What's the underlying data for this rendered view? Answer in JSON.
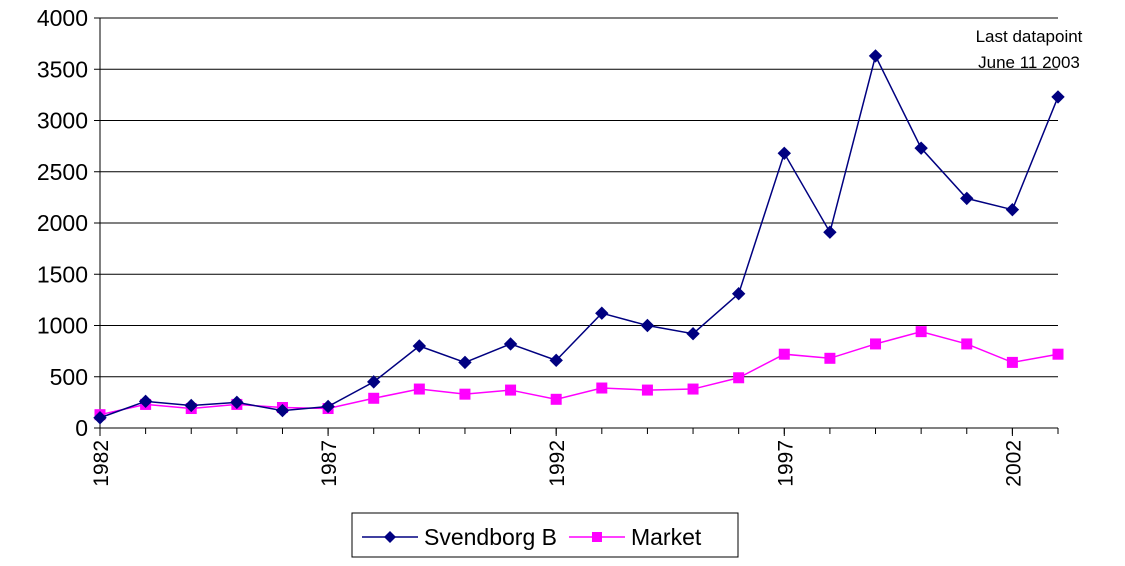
{
  "chart_data": {
    "type": "line",
    "annotations": [
      "Last datapoint",
      "June 11 2003"
    ],
    "x": [
      1982,
      1983,
      1984,
      1985,
      1986,
      1987,
      1988,
      1989,
      1990,
      1991,
      1992,
      1993,
      1994,
      1995,
      1996,
      1997,
      1998,
      1999,
      2000,
      2001,
      2002,
      2003
    ],
    "series": [
      {
        "name": "Svendborg B",
        "color": "#000080",
        "marker": "diamond",
        "values": [
          100,
          260,
          220,
          250,
          170,
          210,
          450,
          800,
          640,
          820,
          660,
          1120,
          1000,
          920,
          1310,
          2680,
          1910,
          3630,
          2730,
          2240,
          2130,
          3230
        ]
      },
      {
        "name": "Market",
        "color": "#ff00ff",
        "marker": "square",
        "values": [
          130,
          230,
          190,
          230,
          200,
          190,
          290,
          380,
          330,
          370,
          280,
          390,
          370,
          380,
          490,
          720,
          680,
          820,
          940,
          820,
          640,
          720
        ]
      }
    ],
    "xlim": [
      1982,
      2003
    ],
    "xticks": [
      1982,
      1987,
      1992,
      1997,
      2002
    ],
    "ylim": [
      0,
      4000
    ],
    "yticks": [
      0,
      500,
      1000,
      1500,
      2000,
      2500,
      3000,
      3500,
      4000
    ],
    "grid": true,
    "legend": "bottom"
  }
}
